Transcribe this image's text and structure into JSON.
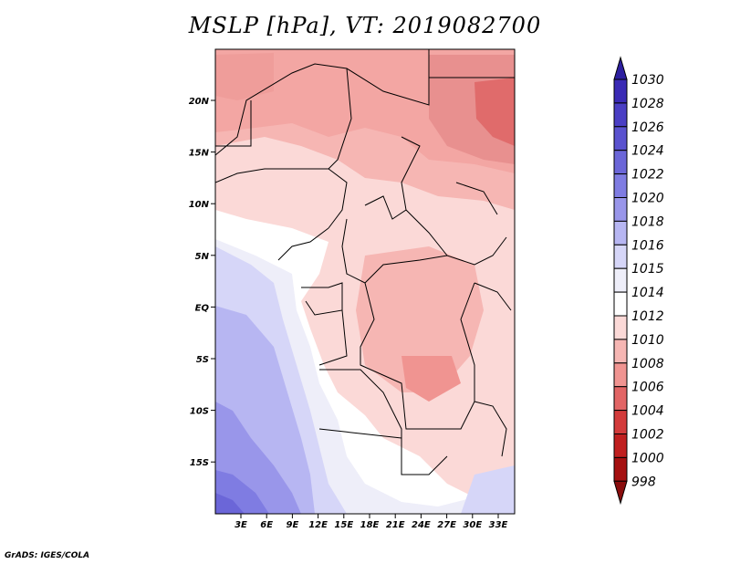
{
  "title": "MSLP [hPa], VT: 2019082700",
  "credit": "GrADS: IGES/COLA",
  "map": {
    "lat_labels": [
      "20N",
      "15N",
      "10N",
      "5N",
      "EQ",
      "5S",
      "10S",
      "15S"
    ],
    "lon_labels": [
      "3E",
      "6E",
      "9E",
      "12E",
      "15E",
      "18E",
      "21E",
      "24E",
      "27E",
      "30E",
      "33E"
    ]
  },
  "colorbar": {
    "labels": [
      "1030",
      "1028",
      "1026",
      "1024",
      "1022",
      "1020",
      "1018",
      "1016",
      "1015",
      "1014",
      "1012",
      "1010",
      "1008",
      "1006",
      "1004",
      "1002",
      "1000",
      "998"
    ],
    "colors": [
      "#2d1fa0",
      "#3a2ab5",
      "#4a3ec4",
      "#5a52cf",
      "#6b66d8",
      "#7f7ce2",
      "#9996ea",
      "#b7b6f2",
      "#d6d6f8",
      "#eeeef9",
      "#ffffff",
      "#fbd9d7",
      "#f6b6b3",
      "#f09491",
      "#e26565",
      "#d33b3b",
      "#c01f1f",
      "#a51010",
      "#8a0d0d"
    ]
  }
}
